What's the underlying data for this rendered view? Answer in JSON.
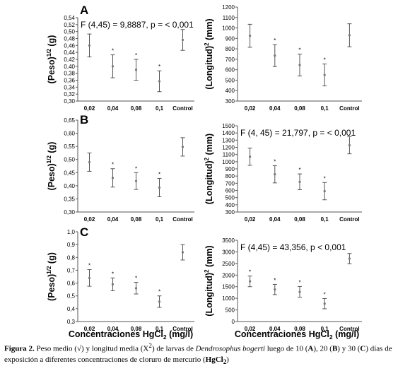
{
  "colors": {
    "axis": "#555555",
    "errorbar": "#555555",
    "point": "#777777",
    "text": "#000000"
  },
  "panel_letters": [
    "A",
    "B",
    "C"
  ],
  "x_axis_title": {
    "text": "Concentraciones HgCl",
    "sub": "2",
    "unit": "(mg/l)"
  },
  "ylabel_peso": {
    "pre": "(Peso)",
    "sup": "1/2",
    "post": " (g)"
  },
  "ylabel_longitud": {
    "pre": "(Longitud)",
    "sup": "2",
    "post": " (mm)"
  },
  "chart_data": [
    {
      "id": "A-left",
      "panel": "A",
      "type": "scatter",
      "categories": [
        "0,02",
        "0,04",
        "0,08",
        "0,1",
        "Control"
      ],
      "values": [
        0.46,
        0.4,
        0.39,
        0.357,
        0.476
      ],
      "error": [
        0.033,
        0.033,
        0.03,
        0.03,
        0.03
      ],
      "significant": [
        false,
        true,
        true,
        true,
        false
      ],
      "ylim": [
        0.3,
        0.54
      ],
      "yticks": [
        0.3,
        0.32,
        0.34,
        0.36,
        0.38,
        0.4,
        0.42,
        0.44,
        0.46,
        0.48,
        0.5,
        0.52,
        0.54
      ],
      "ytick_labels": [
        "0,30",
        "0,32",
        "0,34",
        "0,36",
        "0,38",
        "0,40",
        "0,42",
        "0,44",
        "0,46",
        "0,48",
        "0,50",
        "0,52",
        "0,54"
      ],
      "annotation": "F (4,45) = 9,8887, p = < 0,001",
      "ylabel": "peso"
    },
    {
      "id": "A-right",
      "panel": "A",
      "type": "scatter",
      "categories": [
        "0,02",
        "0,04",
        "0,08",
        "0,1",
        "Control"
      ],
      "values": [
        925,
        735,
        645,
        550,
        930
      ],
      "error": [
        110,
        105,
        105,
        105,
        110
      ],
      "significant": [
        false,
        true,
        true,
        true,
        false
      ],
      "ylim": [
        300,
        1200
      ],
      "yticks": [
        300,
        400,
        500,
        600,
        700,
        800,
        900,
        1000,
        1100,
        1200
      ],
      "ytick_labels": [
        "300",
        "400",
        "500",
        "600",
        "700",
        "800",
        "900",
        "1000",
        "1100",
        "1200"
      ],
      "annotation": "",
      "ylabel": "longitud"
    },
    {
      "id": "B-left",
      "panel": "B",
      "type": "scatter",
      "categories": [
        "0,02",
        "0,04",
        "0,08",
        "0,1",
        "Control"
      ],
      "values": [
        0.49,
        0.43,
        0.418,
        0.393,
        0.548
      ],
      "error": [
        0.035,
        0.035,
        0.032,
        0.035,
        0.035
      ],
      "significant": [
        false,
        true,
        true,
        true,
        false
      ],
      "ylim": [
        0.3,
        0.65
      ],
      "yticks": [
        0.3,
        0.35,
        0.4,
        0.45,
        0.5,
        0.55,
        0.6,
        0.65
      ],
      "ytick_labels": [
        "0,30",
        "0,35",
        "0,40",
        "0,45",
        "0,50",
        "0,55",
        "0,60",
        "0,65"
      ],
      "annotation": "",
      "ylabel": "peso"
    },
    {
      "id": "B-right",
      "panel": "B",
      "type": "scatter",
      "categories": [
        "0,02",
        "0,04",
        "0,08",
        "0,1",
        "Control"
      ],
      "values": [
        1070,
        825,
        720,
        590,
        1230
      ],
      "error": [
        120,
        120,
        110,
        120,
        120
      ],
      "significant": [
        false,
        true,
        true,
        true,
        false
      ],
      "ylim": [
        300,
        1500
      ],
      "yticks": [
        300,
        400,
        500,
        600,
        700,
        800,
        900,
        1000,
        1100,
        1200,
        1300,
        1400,
        1500
      ],
      "ytick_labels": [
        "300",
        "400",
        "500",
        "600",
        "700",
        "800",
        "900",
        "1000",
        "1100",
        "1200",
        "1300",
        "1400",
        "1500"
      ],
      "annotation": "F (4, 45) = 21,797, p = < 0,001",
      "ylabel": "longitud"
    },
    {
      "id": "C-left",
      "panel": "C",
      "type": "scatter",
      "categories": [
        "0,02",
        "0,04",
        "0,08",
        "0,1",
        "Control"
      ],
      "values": [
        0.64,
        0.59,
        0.56,
        0.455,
        0.84
      ],
      "error": [
        0.065,
        0.05,
        0.045,
        0.045,
        0.06
      ],
      "significant": [
        true,
        true,
        true,
        true,
        false
      ],
      "ylim": [
        0.3,
        1.0
      ],
      "yticks": [
        0.3,
        0.4,
        0.5,
        0.6,
        0.7,
        0.8,
        0.9,
        1.0
      ],
      "ytick_labels": [
        "0,3",
        "0,4",
        "0,5",
        "0,6",
        "0,7",
        "0,8",
        "0,9",
        "1,0"
      ],
      "annotation": "",
      "ylabel": "peso"
    },
    {
      "id": "C-right",
      "panel": "C",
      "type": "scatter",
      "categories": [
        "0,02",
        "0,04",
        "0,08",
        "0,1",
        "Control"
      ],
      "values": [
        1730,
        1380,
        1280,
        770,
        2710
      ],
      "error": [
        230,
        220,
        230,
        220,
        220
      ],
      "significant": [
        true,
        true,
        true,
        true,
        false
      ],
      "ylim": [
        0,
        3500
      ],
      "yticks": [
        0,
        500,
        1000,
        1500,
        2000,
        2500,
        3000,
        3500
      ],
      "ytick_labels": [
        "0",
        "500",
        "1000",
        "1500",
        "2000",
        "2500",
        "3000",
        "3500"
      ],
      "annotation": "F (4,45) = 43,356, p < 0,001",
      "ylabel": "longitud"
    }
  ],
  "caption": {
    "label": "Figura 2.",
    "part1": " Peso medio (",
    "sqrt": "√",
    "part2": ") y longitud media (X",
    "sup2": "2",
    "part3": ") de larvas de ",
    "species": "Dendrosophus bogerti",
    "part4": " luego de 10 (",
    "A": "A",
    "part5": "), 20 (",
    "B": "B",
    "part6": ") y 30 (",
    "C": "C",
    "part7": ") días de exposición a diferentes concentraciones de cloruro de mercurio (",
    "hg": "HgCl",
    "hg_sub": "2",
    "part8": ")"
  }
}
